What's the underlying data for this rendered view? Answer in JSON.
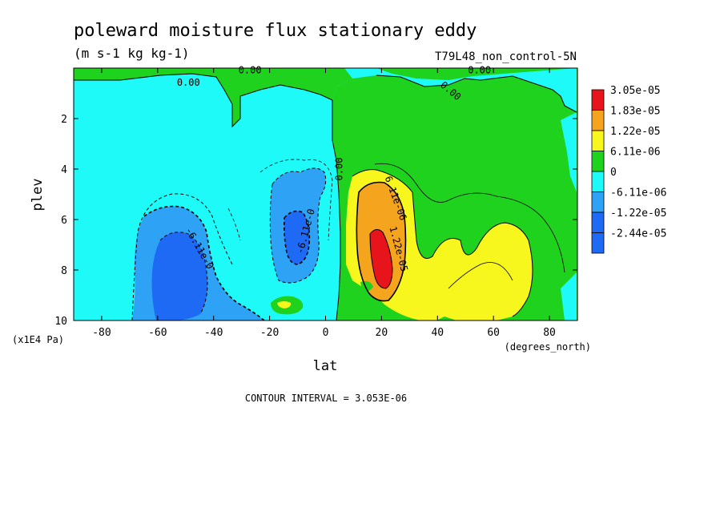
{
  "chart_data": {
    "type": "contour",
    "title": "poleward moisture flux stationary eddy",
    "units": "(m s-1 kg kg-1)",
    "experiment": "T79L48_non_control-5N",
    "xlabel": "lat",
    "xunits": "(degrees_north)",
    "ylabel": "plev",
    "yunits": "(x1E4 Pa)",
    "xlim": [
      -90,
      90
    ],
    "ylim": [
      10,
      0
    ],
    "x_ticks": [
      -80,
      -60,
      -40,
      -20,
      0,
      20,
      40,
      60,
      80
    ],
    "x_tick_labels": [
      "-80",
      "-60",
      "-40",
      "-20",
      "0",
      "20",
      "40",
      "60",
      "80"
    ],
    "y_ticks": [
      2,
      4,
      6,
      8,
      10
    ],
    "y_tick_labels": [
      "2",
      "4",
      "6",
      "8",
      "10"
    ],
    "contour_interval_text": "CONTOUR INTERVAL = 3.053E-06",
    "legend": [
      {
        "label": "3.05e-05",
        "color": "#e8141c"
      },
      {
        "label": "1.83e-05",
        "color": "#f5a41e"
      },
      {
        "label": "1.22e-05",
        "color": "#f7f71e"
      },
      {
        "label": "6.11e-06",
        "color": "#1ed21e"
      },
      {
        "label": "0",
        "color": "#1efaf7"
      },
      {
        "label": "-6.11e-06",
        "color": "#2ea3f5"
      },
      {
        "label": "-1.22e-05",
        "color": "#1e6af5"
      },
      {
        "label": "-2.44e-05",
        "color": "#1e6af5"
      }
    ],
    "contour_labels": [
      {
        "text": "0.00",
        "lat": -49,
        "plev": 0.7
      },
      {
        "text": "0.00",
        "lat": -27,
        "plev": 0.2
      },
      {
        "text": "0.00",
        "lat": 55,
        "plev": 0.2
      },
      {
        "text": "0.00",
        "lat": 44,
        "plev": 1.0
      },
      {
        "text": "0.00",
        "lat": 6,
        "plev": 4.0
      },
      {
        "text": "6.11e-06",
        "lat": 24,
        "plev": 5.2
      },
      {
        "text": "1.22e-05",
        "lat": 25,
        "plev": 7.2
      },
      {
        "text": "-6.11e-0",
        "lat": -46,
        "plev": 7.2
      },
      {
        "text": "-6.11e-0",
        "lat": -6,
        "plev": 6.5
      }
    ]
  }
}
